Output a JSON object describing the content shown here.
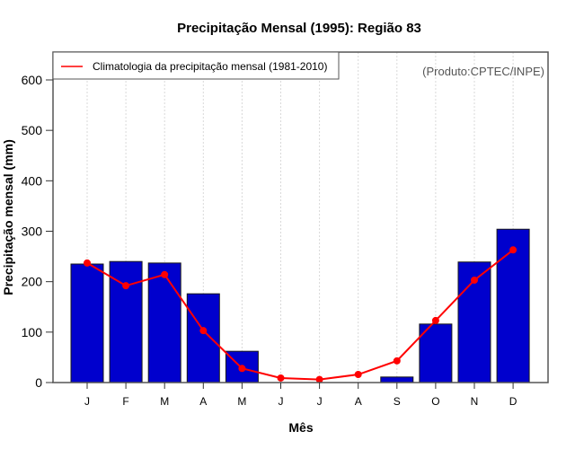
{
  "chart_data": {
    "type": "bar",
    "title": "Precipitação Mensal (1995): Região 83",
    "xlabel": "Mês",
    "ylabel": "Precipitação mensal (mm)",
    "categories": [
      "J",
      "F",
      "M",
      "A",
      "M",
      "J",
      "J",
      "A",
      "S",
      "O",
      "N",
      "D"
    ],
    "ylim": [
      0,
      600
    ],
    "yticks": [
      0,
      100,
      200,
      300,
      400,
      500,
      600
    ],
    "series": [
      {
        "name": "Precipitação mensal (1995)",
        "type": "bar",
        "color": "#0000cd",
        "values": [
          235,
          240,
          237,
          176,
          62,
          0,
          0,
          0,
          11,
          116,
          239,
          304
        ]
      },
      {
        "name": "Climatologia da precipitação mensal (1981-2010)",
        "type": "line",
        "color": "#ff0000",
        "values": [
          237,
          192,
          214,
          103,
          28,
          9,
          6,
          16,
          43,
          123,
          203,
          263
        ]
      }
    ],
    "legend": {
      "position": "top-left",
      "entries": [
        "Climatologia da precipitação mensal (1981-2010)"
      ]
    },
    "annotation": "(Produto:CPTEC/INPE)",
    "grid": {
      "vertical": true,
      "horizontal": false
    }
  }
}
